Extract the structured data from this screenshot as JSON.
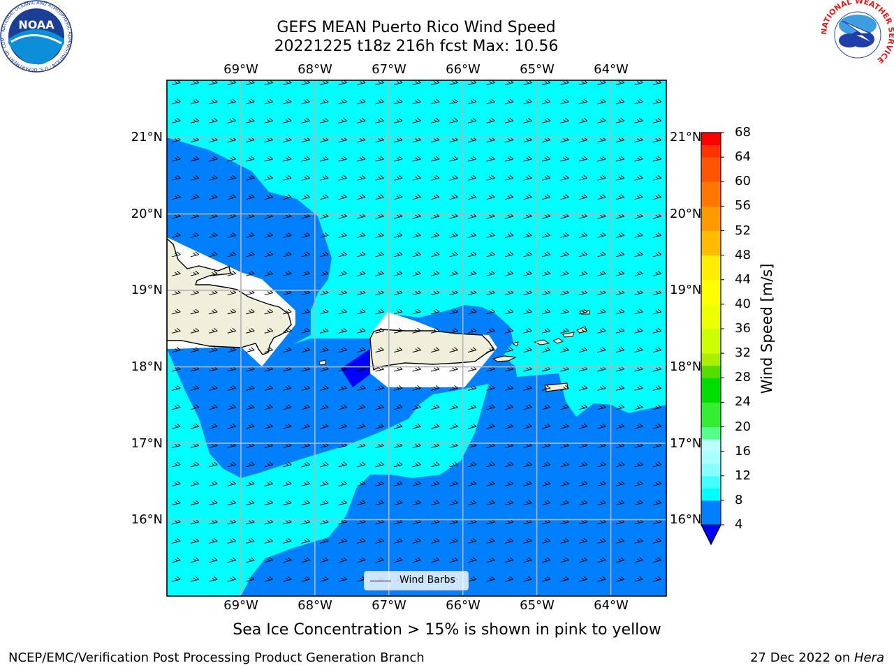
{
  "header": {
    "title_line1": "GEFS MEAN Puerto Rico Wind Speed",
    "title_line2": "20221225 t18z 216h fcst   Max: 10.56"
  },
  "logos": {
    "noaa": {
      "center_text": "NOAA",
      "ring_text": "NATIONAL OCEANIC AND ATMOSPHERIC ADMINISTRATION · U.S. DEPARTMENT OF COMMERCE"
    },
    "nws": {
      "ring_text": "NATIONAL WEATHER SERVICE"
    }
  },
  "map": {
    "lon_ticks": [
      "69°W",
      "68°W",
      "67°W",
      "66°W",
      "65°W",
      "64°W"
    ],
    "lat_ticks": [
      "21°N",
      "20°N",
      "19°N",
      "18°N",
      "17°N",
      "16°N"
    ],
    "extent": {
      "lon_min": -70.0,
      "lon_max": -63.25,
      "lat_min": 15.0,
      "lat_max": 21.75
    },
    "gridlines": true,
    "land_color": "#efefdc",
    "land_areas": [
      "Hispaniola (eastern part)",
      "Puerto Rico",
      "Virgin Islands"
    ],
    "wind_direction": "easterly",
    "legend": {
      "label": "Wind Barbs",
      "placement": "bottom-center"
    }
  },
  "colorbar": {
    "title": "Wind Speed [m/s]",
    "tick_labels": [
      "68",
      "64",
      "60",
      "56",
      "52",
      "48",
      "44",
      "40",
      "36",
      "32",
      "28",
      "24",
      "20",
      "16",
      "12",
      "8",
      "4"
    ],
    "levels": [
      4,
      8,
      10,
      12,
      14,
      16,
      18,
      20,
      24,
      28,
      30,
      32,
      36,
      40,
      44,
      48,
      52,
      56,
      60,
      64,
      66,
      68
    ],
    "colors": [
      "#0080ff",
      "#00ffff",
      "#44ffff",
      "#88ffff",
      "#aaffff",
      "#bbffff",
      "#55ff88",
      "#33ee33",
      "#00dd00",
      "#55dd00",
      "#aaee00",
      "#ccff00",
      "#eeff00",
      "#ffff00",
      "#ffee00",
      "#ffbb00",
      "#ff9900",
      "#ff7700",
      "#ff5500",
      "#ff3300",
      "#ff0000"
    ],
    "under_color": "#0000ff",
    "extend": "min"
  },
  "chart_data": {
    "type": "heatmap",
    "title": "GEFS MEAN Puerto Rico Wind Speed",
    "subtitle": "20221225 t18z 216h fcst   Max: 10.56",
    "field": "wind speed",
    "units": "m/s",
    "max_value": 10.56,
    "value_regions": [
      {
        "range": "<4",
        "color": "#0000ff",
        "area": "small patch off west coast of Puerto Rico"
      },
      {
        "range": "4-8",
        "color": "#0080ff",
        "area": "band north of Hispaniola, Mona Passage, south of Puerto Rico, southeast quadrant"
      },
      {
        "range": "8-10",
        "color": "#00ffff",
        "area": "most of northern sea, far southwest, central south"
      }
    ],
    "colorbar_range": [
      4,
      68
    ],
    "xlabel": "",
    "ylabel": ""
  },
  "footer": {
    "note": "Sea Ice Concentration > 15% is shown in pink to yellow",
    "left": "NCEP/EMC/Verification Post Processing Product Generation Branch",
    "right_prefix": "27 Dec 2022 on ",
    "right_italic": "Hera"
  }
}
